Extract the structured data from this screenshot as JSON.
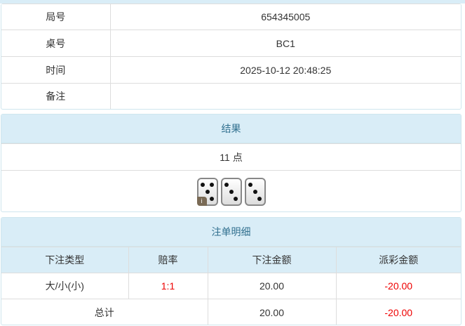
{
  "info": {
    "rows": [
      {
        "label": "局号",
        "value": "654345005"
      },
      {
        "label": "桌号",
        "value": "BC1"
      },
      {
        "label": "时间",
        "value": "2025-10-12 20:48:25"
      },
      {
        "label": "备注",
        "value": ""
      }
    ]
  },
  "result": {
    "title": "结果",
    "points": "11 点",
    "dice": [
      5,
      3,
      3
    ],
    "info_badge": "i"
  },
  "bets": {
    "title": "注单明细",
    "headers": [
      "下注类型",
      "赔率",
      "下注金额",
      "派彩金额"
    ],
    "rows": [
      {
        "type": "大/小(小)",
        "odds": "1:1",
        "amount": "20.00",
        "payout": "-20.00"
      }
    ],
    "total": {
      "label": "总计",
      "amount": "20.00",
      "payout": "-20.00"
    }
  },
  "colors": {
    "header_bg": "#d9edf7",
    "header_text": "#31708f",
    "negative": "#e00000"
  }
}
